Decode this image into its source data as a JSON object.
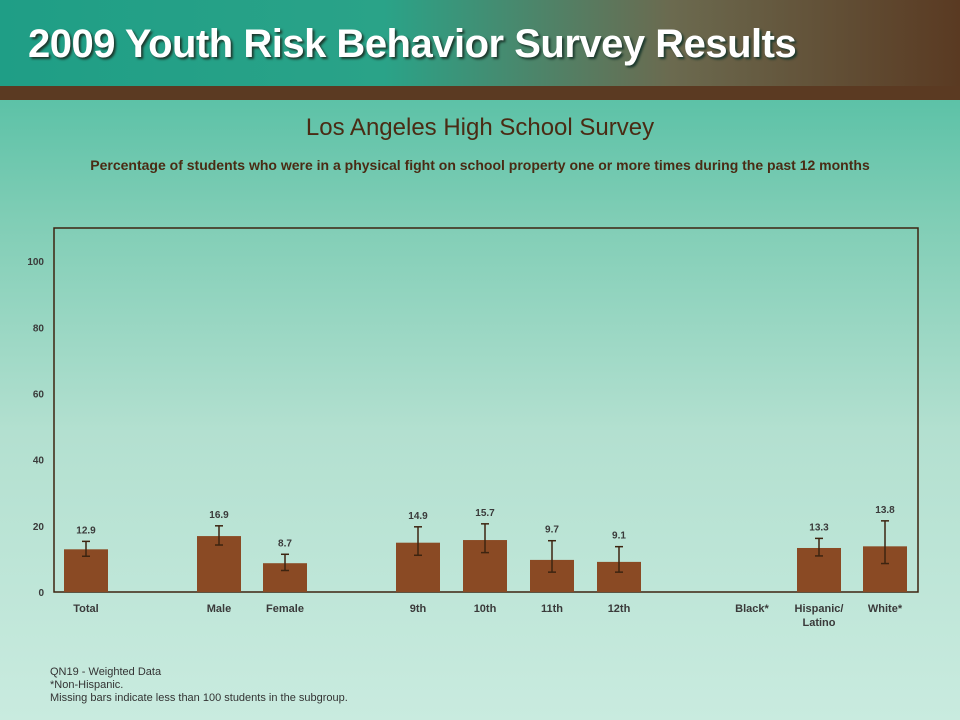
{
  "header": {
    "title": "2009 Youth Risk Behavior Survey Results"
  },
  "chart_data": {
    "type": "bar",
    "title": "Los Angeles High School Survey",
    "subtitle": "Percentage of students who were in a physical fight on school property one or more times during the past 12 months",
    "ylim": [
      0,
      110
    ],
    "yticks": [
      0,
      20,
      40,
      60,
      80,
      100
    ],
    "grid": false,
    "categories": [
      "Total",
      "Male",
      "Female",
      "9th",
      "10th",
      "11th",
      "12th",
      "Black*",
      "Hispanic/\nLatino",
      "White*"
    ],
    "values": [
      12.9,
      16.9,
      8.7,
      14.9,
      15.7,
      9.7,
      9.1,
      null,
      13.3,
      13.8
    ],
    "value_labels": [
      "12.9",
      "16.9",
      "8.7",
      "14.9",
      "15.7",
      "9.7",
      "9.1",
      "",
      "13.3",
      "13.8"
    ],
    "ci_low": [
      10.8,
      14.2,
      6.5,
      11.1,
      11.9,
      6.0,
      6.0,
      null,
      10.9,
      8.6
    ],
    "ci_high": [
      15.3,
      20.0,
      11.4,
      19.7,
      20.6,
      15.5,
      13.7,
      null,
      16.2,
      21.5
    ],
    "bar_color": "#8a4a24",
    "error_bar_color": "#3d2410"
  },
  "footnotes": [
    "QN19 - Weighted Data",
    "*Non-Hispanic.",
    "Missing bars indicate less than 100 students in the subgroup."
  ]
}
